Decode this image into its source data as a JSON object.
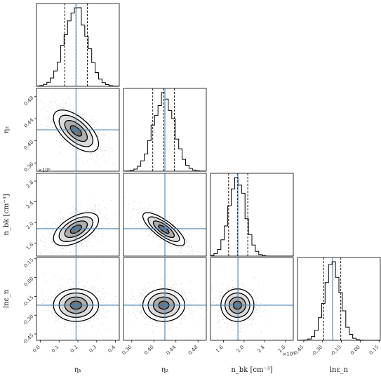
{
  "chart_data": {
    "type": "corner",
    "params": [
      {
        "name": "η1",
        "label": "$\\eta_1$",
        "range": [
          -0.02,
          0.42
        ],
        "ticks": [
          "0.0",
          "0.1",
          "0.2",
          "0.3",
          "0.4"
        ],
        "truth": 0.19,
        "q16": 0.13,
        "q50": 0.19,
        "q84": 0.25,
        "sigma": 0.06
      },
      {
        "name": "η2",
        "label": "$\\eta_2$",
        "range": [
          0.345,
          0.495
        ],
        "ticks": [
          "0.36",
          "0.40",
          "0.44",
          "0.48"
        ],
        "truth": 0.42,
        "q16": 0.398,
        "q50": 0.418,
        "q84": 0.437,
        "sigma": 0.019
      },
      {
        "name": "n_bk",
        "label": "$n_{\\rm bk}$ [cm$^{-3}$]",
        "range": [
          1.35,
          2.95
        ],
        "ticks": [
          "1.6",
          "2.0",
          "2.4",
          "2.8"
        ],
        "scale_note": "×10⁸",
        "truth": 1.88,
        "q16": 1.7,
        "q50": 1.87,
        "q84": 2.07,
        "sigma": 0.16
      },
      {
        "name": "lnε_n",
        "label": "$\\ln\\epsilon_n$",
        "range": [
          -0.5,
          0.16
        ],
        "ticks": [
          "-0.45",
          "-0.30",
          "-0.15",
          "0.00",
          "0.15"
        ],
        "truth": -0.22,
        "q16": -0.29,
        "q50": -0.22,
        "q84": -0.155,
        "sigma": 0.065
      }
    ],
    "y_tick_labels": {
      "η2": [
        "0.48",
        "0.44",
        "0.40",
        "0.36"
      ],
      "n_bk": [
        "2.8",
        "2.4",
        "2.0",
        "1.6"
      ],
      "lnε_n": [
        "0.15",
        "0.00",
        "-0.15",
        "-0.30",
        "-0.45"
      ]
    },
    "correlations": [
      {
        "pair": [
          "η1",
          "η2"
        ],
        "rho": -0.62
      },
      {
        "pair": [
          "η1",
          "n_bk"
        ],
        "rho": 0.55
      },
      {
        "pair": [
          "η2",
          "n_bk"
        ],
        "rho": -0.78
      },
      {
        "pair": [
          "η1",
          "lnε_n"
        ],
        "rho": 0.0
      },
      {
        "pair": [
          "η2",
          "lnε_n"
        ],
        "rho": 0.0
      },
      {
        "pair": [
          "n_bk",
          "lnε_n"
        ],
        "rho": 0.0
      }
    ],
    "truth_color": "#4682b4",
    "hist_color": "#000000",
    "quantile_style": "dashed",
    "contour_levels_sigma": [
      0.5,
      1.0,
      1.5,
      2.0
    ]
  },
  "labels": {
    "x": [
      "η₁",
      "η₂",
      "n_bk [cm⁻³]",
      "lnε_n"
    ],
    "y": [
      "η₂",
      "n_bk [cm⁻³]",
      "lnε_n"
    ],
    "offset_y_nbk": "×10⁸",
    "offset_x_nbk": "×10⁸"
  },
  "colors": {
    "truth": "#4682b4",
    "line": "#000000",
    "fill_dark": "#555555",
    "scatter": "#9a9a9a"
  }
}
